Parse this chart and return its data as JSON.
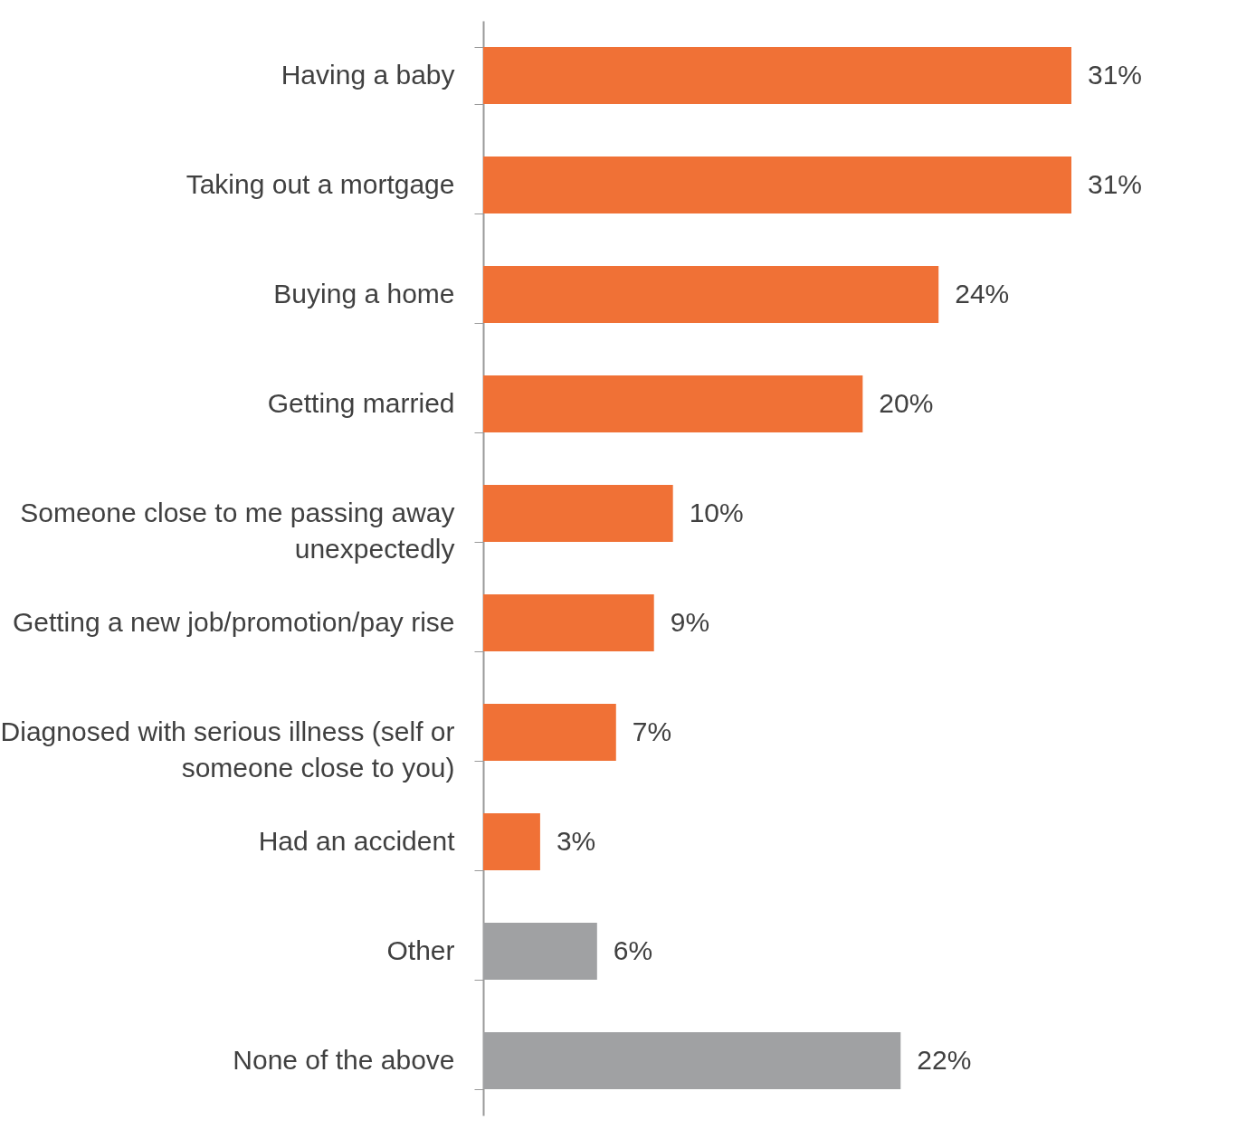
{
  "chart_data": {
    "type": "bar",
    "orientation": "horizontal",
    "categories": [
      "Having a baby",
      "Taking out a mortgage",
      "Buying a home",
      "Getting married",
      "Someone close to me passing away unexpectedly",
      "Getting a new job/promotion/pay rise",
      "Diagnosed with serious illness (self or someone close to you)",
      "Had an accident",
      "Other",
      "None of the above"
    ],
    "values": [
      31,
      31,
      24,
      20,
      10,
      9,
      7,
      3,
      6,
      22
    ],
    "value_labels": [
      "31%",
      "31%",
      "24%",
      "20%",
      "10%",
      "9%",
      "7%",
      "3%",
      "6%",
      "22%"
    ],
    "colors": [
      "#f07136",
      "#f07136",
      "#f07136",
      "#f07136",
      "#f07136",
      "#f07136",
      "#f07136",
      "#f07136",
      "#a0a1a3",
      "#a0a1a3"
    ]
  }
}
